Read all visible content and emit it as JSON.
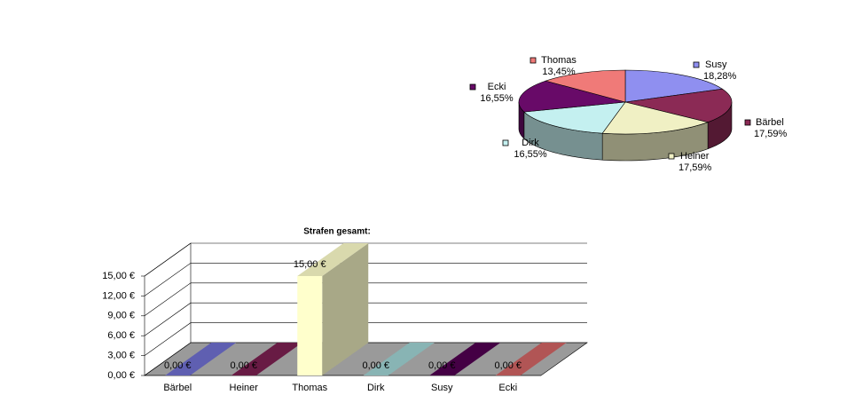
{
  "chart_data": [
    {
      "type": "pie3d",
      "categories": [
        "Susy",
        "Bärbel",
        "Heiner",
        "Dirk",
        "Ecki",
        "Thomas"
      ],
      "values": [
        18.28,
        17.59,
        17.59,
        16.55,
        16.55,
        13.45
      ],
      "value_labels": [
        "18,28%",
        "17,59%",
        "17,59%",
        "16,55%",
        "16,55%",
        "13,45%"
      ],
      "colors": [
        "#8f8ff0",
        "#8b2a55",
        "#f0f0c4",
        "#c4f0f0",
        "#680a68",
        "#f07a78"
      ]
    },
    {
      "type": "bar3d",
      "title": "Strafen gesamt:",
      "categories": [
        "Bärbel",
        "Heiner",
        "Thomas",
        "Dirk",
        "Susy",
        "Ecki"
      ],
      "values": [
        0,
        0,
        15,
        0,
        0,
        0
      ],
      "value_labels": [
        "0,00 €",
        "0,00 €",
        "15,00 €",
        "0,00 €",
        "0,00 €",
        "0,00 €"
      ],
      "colors": [
        "#7070d0",
        "#7a2050",
        "#ffffcc",
        "#a0d4d4",
        "#500050",
        "#d06464"
      ],
      "ylim": [
        0,
        15
      ],
      "yticks": [
        {
          "value": 0,
          "label": "0,00 €"
        },
        {
          "value": 3,
          "label": "3,00 €"
        },
        {
          "value": 6,
          "label": "6,00 €"
        },
        {
          "value": 9,
          "label": "9,00 €"
        },
        {
          "value": 12,
          "label": "12,00 €"
        },
        {
          "value": 15,
          "label": "15,00 €"
        }
      ],
      "grid": true
    }
  ]
}
